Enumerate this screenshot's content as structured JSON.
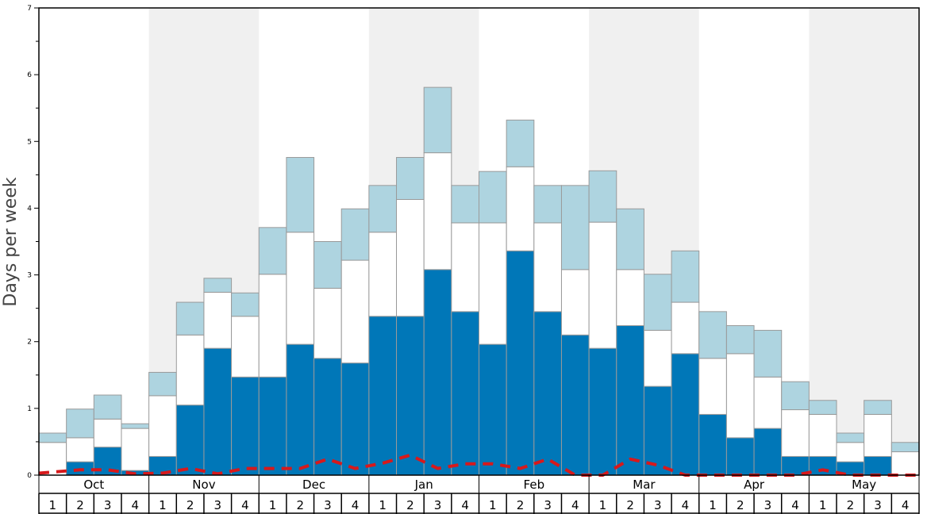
{
  "chart_data": {
    "type": "bar",
    "stacked": true,
    "title": "",
    "xlabel": "",
    "ylabel": "Days per week",
    "ylim": [
      0,
      7
    ],
    "yticks": [
      "0",
      "1",
      "2",
      "3",
      "4",
      "5",
      "6",
      "7"
    ],
    "months": [
      "Oct",
      "Nov",
      "Dec",
      "Jan",
      "Feb",
      "Mar",
      "Apr",
      "May"
    ],
    "weeks": [
      "1",
      "2",
      "3",
      "4"
    ],
    "colors": {
      "bottom": "#0077b8",
      "middle": "#ffffff",
      "top": "#aed4e0",
      "line": "#d7191c",
      "shade": "#f0f0f0",
      "bar_edge": "#9a9a9a"
    },
    "series": [
      {
        "values": [
          0.0,
          0.2,
          0.42,
          0.07,
          0.28,
          1.05,
          1.9,
          1.47,
          1.47,
          1.96,
          1.75,
          1.68,
          2.38,
          2.38,
          3.08,
          2.45,
          1.96,
          3.36,
          2.45,
          2.1,
          1.9,
          2.24,
          1.33,
          1.82,
          0.91,
          0.56,
          0.7,
          0.28,
          0.28,
          0.2,
          0.28,
          0.0
        ]
      },
      {
        "values": [
          0.49,
          0.36,
          0.42,
          0.63,
          0.91,
          1.05,
          0.84,
          0.91,
          1.54,
          1.68,
          1.05,
          1.54,
          1.26,
          1.75,
          1.75,
          1.33,
          1.82,
          1.26,
          1.33,
          0.98,
          1.89,
          0.84,
          0.84,
          0.77,
          0.84,
          1.26,
          0.77,
          0.7,
          0.63,
          0.29,
          0.63,
          0.35
        ]
      },
      {
        "values": [
          0.14,
          0.43,
          0.36,
          0.07,
          0.35,
          0.49,
          0.21,
          0.35,
          0.7,
          1.12,
          0.7,
          0.77,
          0.7,
          0.63,
          0.98,
          0.56,
          0.77,
          0.7,
          0.56,
          1.26,
          0.77,
          0.91,
          0.84,
          0.77,
          0.7,
          0.42,
          0.7,
          0.42,
          0.21,
          0.14,
          0.21,
          0.14
        ]
      },
      {
        "style": "dashed",
        "values": [
          0.03,
          0.08,
          0.08,
          0.02,
          0.03,
          0.1,
          0.02,
          0.1,
          0.1,
          0.1,
          0.24,
          0.1,
          0.18,
          0.3,
          0.1,
          0.17,
          0.17,
          0.1,
          0.24,
          0.0,
          0.0,
          0.24,
          0.15,
          0.0,
          0.0,
          0.0,
          0.0,
          0.0,
          0.08,
          0.0,
          0.0,
          0.0
        ]
      }
    ]
  }
}
